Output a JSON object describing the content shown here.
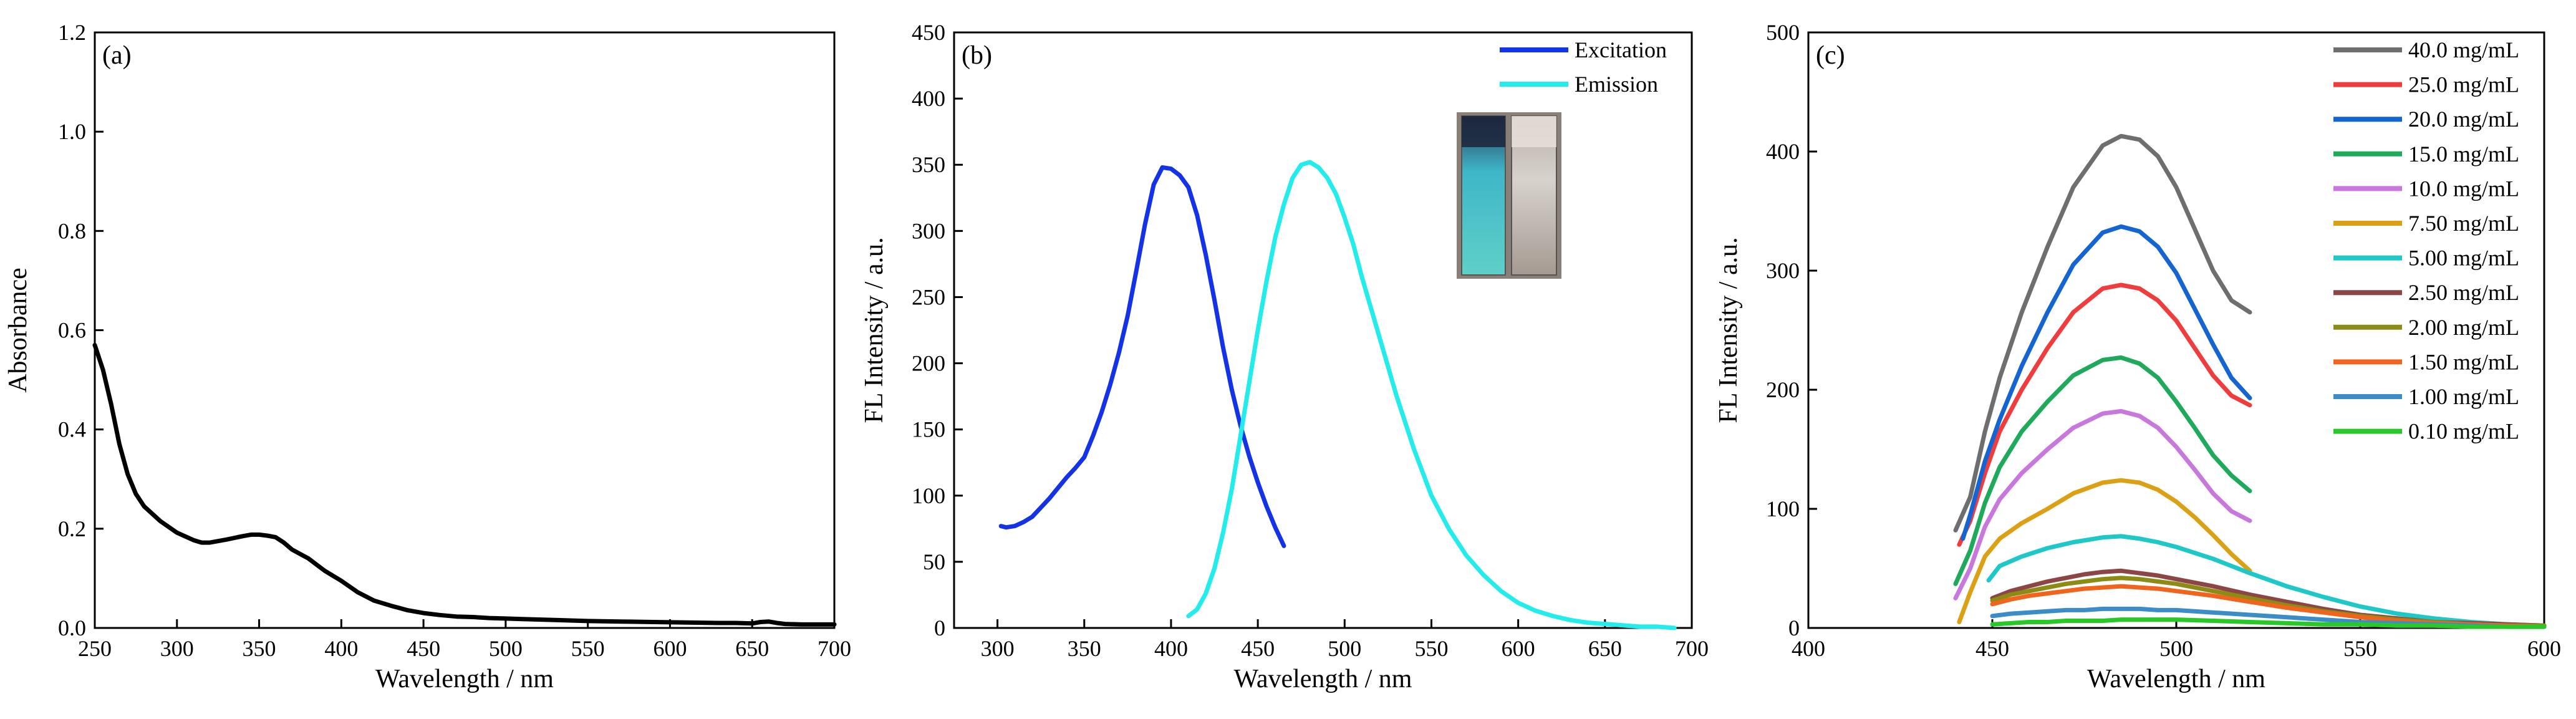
{
  "chart_data": [
    {
      "type": "line",
      "panel_label": "(a)",
      "xlabel": "Wavelength / nm",
      "ylabel": "Absorbance",
      "xlim": [
        250,
        700
      ],
      "ylim": [
        0.0,
        1.2
      ],
      "xticks": [
        250,
        300,
        350,
        400,
        450,
        500,
        550,
        600,
        650,
        700
      ],
      "yticks": [
        0.0,
        0.2,
        0.4,
        0.6,
        0.8,
        1.0,
        1.2
      ],
      "ytick_decimals": 1,
      "series": [
        {
          "name": "Absorbance",
          "color": "#000000",
          "x": [
            250,
            255,
            260,
            265,
            270,
            275,
            280,
            290,
            300,
            310,
            315,
            320,
            330,
            340,
            345,
            350,
            355,
            360,
            365,
            370,
            380,
            390,
            400,
            410,
            420,
            430,
            440,
            450,
            460,
            470,
            480,
            490,
            500,
            510,
            520,
            530,
            550,
            570,
            590,
            610,
            630,
            640,
            650,
            655,
            660,
            665,
            670,
            680,
            690,
            700
          ],
          "y": [
            0.57,
            0.52,
            0.45,
            0.37,
            0.31,
            0.27,
            0.245,
            0.215,
            0.192,
            0.177,
            0.172,
            0.172,
            0.178,
            0.185,
            0.188,
            0.188,
            0.186,
            0.183,
            0.172,
            0.158,
            0.14,
            0.115,
            0.095,
            0.072,
            0.055,
            0.045,
            0.036,
            0.03,
            0.026,
            0.023,
            0.022,
            0.02,
            0.019,
            0.018,
            0.017,
            0.016,
            0.014,
            0.013,
            0.012,
            0.011,
            0.01,
            0.01,
            0.009,
            0.012,
            0.013,
            0.01,
            0.008,
            0.007,
            0.007,
            0.007
          ]
        }
      ]
    },
    {
      "type": "line",
      "panel_label": "(b)",
      "xlabel": "Wavelength / nm",
      "ylabel": "FL Intensity / a.u.",
      "xlim": [
        275,
        700
      ],
      "ylim": [
        0,
        450
      ],
      "xticks": [
        300,
        350,
        400,
        450,
        500,
        550,
        600,
        650,
        700
      ],
      "yticks": [
        0,
        50,
        100,
        150,
        200,
        250,
        300,
        350,
        400,
        450
      ],
      "ytick_decimals": 0,
      "legend_position": "top-right",
      "inset": "cuvette photo (blue glowing vial and clear vial)",
      "series": [
        {
          "name": "Excitation",
          "color": "#1432e6",
          "x": [
            302,
            305,
            310,
            315,
            320,
            325,
            330,
            335,
            340,
            345,
            350,
            355,
            360,
            365,
            370,
            375,
            380,
            385,
            390,
            395,
            400,
            405,
            410,
            415,
            420,
            425,
            430,
            435,
            440,
            445,
            450,
            455,
            460,
            465
          ],
          "y": [
            77,
            76,
            77,
            80,
            84,
            91,
            98,
            106,
            114,
            121,
            129,
            145,
            163,
            184,
            208,
            236,
            270,
            305,
            335,
            348,
            347,
            342,
            333,
            312,
            282,
            248,
            212,
            180,
            153,
            130,
            110,
            92,
            76,
            62
          ]
        },
        {
          "name": "Emission",
          "color": "#22ecec",
          "x": [
            410,
            415,
            420,
            425,
            430,
            435,
            440,
            445,
            450,
            455,
            460,
            465,
            470,
            475,
            480,
            485,
            490,
            495,
            500,
            505,
            510,
            520,
            530,
            540,
            550,
            560,
            570,
            580,
            590,
            600,
            610,
            620,
            630,
            640,
            650,
            660,
            670,
            680,
            690
          ],
          "y": [
            9,
            14,
            26,
            45,
            72,
            105,
            145,
            185,
            225,
            262,
            295,
            320,
            340,
            350,
            352,
            348,
            340,
            328,
            310,
            290,
            265,
            220,
            175,
            135,
            100,
            75,
            55,
            40,
            28,
            19,
            13,
            9,
            6,
            4,
            3,
            2,
            1,
            1,
            0
          ]
        }
      ]
    },
    {
      "type": "line",
      "panel_label": "(c)",
      "xlabel": "Wavelength / nm",
      "ylabel": "FL Intensity / a.u.",
      "xlim": [
        400,
        600
      ],
      "ylim": [
        0,
        500
      ],
      "xticks": [
        400,
        450,
        500,
        550,
        600
      ],
      "yticks": [
        0,
        100,
        200,
        300,
        400,
        500
      ],
      "ytick_decimals": 0,
      "legend_position": "top-right",
      "series": [
        {
          "name": "40.0 mg/mL",
          "color": "#6e6e6e",
          "x": [
            440,
            444,
            448,
            452,
            458,
            465,
            472,
            480,
            485,
            490,
            495,
            500,
            505,
            510,
            515,
            520
          ],
          "y": [
            82,
            110,
            165,
            210,
            265,
            320,
            370,
            405,
            413,
            410,
            396,
            370,
            335,
            300,
            275,
            265
          ]
        },
        {
          "name": "25.0 mg/mL",
          "color": "#f03c3c",
          "x": [
            441,
            444,
            448,
            452,
            458,
            465,
            472,
            480,
            485,
            490,
            495,
            500,
            505,
            510,
            515,
            520
          ],
          "y": [
            70,
            90,
            130,
            165,
            200,
            235,
            265,
            285,
            288,
            285,
            275,
            258,
            235,
            212,
            195,
            187
          ]
        },
        {
          "name": "20.0 mg/mL",
          "color": "#1464d2",
          "x": [
            442,
            444,
            448,
            452,
            458,
            465,
            472,
            480,
            485,
            490,
            495,
            500,
            505,
            510,
            515,
            520
          ],
          "y": [
            75,
            95,
            140,
            175,
            220,
            265,
            305,
            332,
            337,
            333,
            320,
            298,
            268,
            238,
            210,
            193
          ]
        },
        {
          "name": "15.0 mg/mL",
          "color": "#1eaa5a",
          "x": [
            440,
            444,
            448,
            452,
            458,
            465,
            472,
            480,
            485,
            490,
            495,
            500,
            505,
            510,
            515,
            520
          ],
          "y": [
            37,
            65,
            105,
            135,
            165,
            190,
            212,
            225,
            227,
            222,
            210,
            190,
            168,
            145,
            128,
            115
          ]
        },
        {
          "name": "10.0 mg/mL",
          "color": "#c878dc",
          "x": [
            440,
            444,
            448,
            452,
            458,
            465,
            472,
            480,
            485,
            490,
            495,
            500,
            505,
            510,
            515,
            520
          ],
          "y": [
            25,
            50,
            85,
            108,
            130,
            150,
            168,
            180,
            182,
            178,
            168,
            152,
            133,
            113,
            98,
            90
          ]
        },
        {
          "name": "7.50 mg/mL",
          "color": "#dca014",
          "x": [
            441,
            444,
            448,
            452,
            458,
            465,
            472,
            480,
            485,
            490,
            495,
            500,
            505,
            510,
            515,
            520
          ],
          "y": [
            5,
            30,
            60,
            75,
            88,
            100,
            113,
            122,
            124,
            122,
            116,
            106,
            93,
            78,
            62,
            48
          ]
        },
        {
          "name": "5.00 mg/mL",
          "color": "#1ec8c8",
          "x": [
            449,
            452,
            458,
            465,
            472,
            480,
            485,
            490,
            495,
            500,
            510,
            520,
            530,
            540,
            550,
            560,
            570,
            580,
            590,
            600
          ],
          "y": [
            40,
            52,
            60,
            67,
            72,
            76,
            77,
            75,
            72,
            68,
            58,
            46,
            35,
            26,
            18,
            12,
            8,
            5,
            3,
            2
          ]
        },
        {
          "name": "2.50 mg/mL",
          "color": "#8c4646",
          "x": [
            450,
            455,
            460,
            465,
            470,
            475,
            480,
            485,
            490,
            495,
            500,
            510,
            520,
            530,
            540,
            550,
            560,
            570,
            580,
            590,
            600
          ],
          "y": [
            25,
            31,
            35,
            39,
            42,
            45,
            47,
            48,
            46,
            44,
            41,
            35,
            28,
            22,
            16,
            11,
            8,
            5,
            4,
            3,
            2
          ]
        },
        {
          "name": "2.00 mg/mL",
          "color": "#8c8c14",
          "x": [
            450,
            455,
            460,
            465,
            470,
            475,
            480,
            485,
            490,
            495,
            500,
            510,
            520,
            530,
            540,
            550,
            560,
            570,
            580,
            590,
            600
          ],
          "y": [
            23,
            28,
            31,
            34,
            37,
            39,
            41,
            42,
            41,
            39,
            37,
            31,
            25,
            19,
            14,
            10,
            7,
            5,
            3,
            2,
            2
          ]
        },
        {
          "name": "1.50 mg/mL",
          "color": "#f0641e",
          "x": [
            450,
            455,
            460,
            465,
            470,
            475,
            480,
            485,
            490,
            495,
            500,
            510,
            520,
            530,
            540,
            550,
            560,
            570,
            580,
            590,
            600
          ],
          "y": [
            20,
            24,
            27,
            29,
            31,
            33,
            34,
            35,
            34,
            33,
            31,
            27,
            22,
            17,
            13,
            9,
            6,
            4,
            3,
            2,
            1
          ]
        },
        {
          "name": "1.00 mg/mL",
          "color": "#3c8cc8",
          "x": [
            450,
            455,
            460,
            465,
            470,
            475,
            480,
            485,
            490,
            495,
            500,
            510,
            520,
            530,
            540,
            550,
            560,
            570,
            580,
            590,
            600
          ],
          "y": [
            10,
            12,
            13,
            14,
            15,
            15,
            16,
            16,
            16,
            15,
            15,
            13,
            11,
            9,
            7,
            5,
            4,
            3,
            2,
            1,
            1
          ]
        },
        {
          "name": "0.10 mg/mL",
          "color": "#28c828",
          "x": [
            450,
            455,
            460,
            465,
            470,
            475,
            480,
            485,
            490,
            495,
            500,
            510,
            520,
            530,
            540,
            550,
            560,
            570,
            580,
            590,
            600
          ],
          "y": [
            3,
            4,
            5,
            5,
            6,
            6,
            6,
            7,
            7,
            7,
            7,
            6,
            5,
            4,
            3,
            3,
            2,
            2,
            1,
            1,
            1
          ]
        }
      ]
    }
  ]
}
